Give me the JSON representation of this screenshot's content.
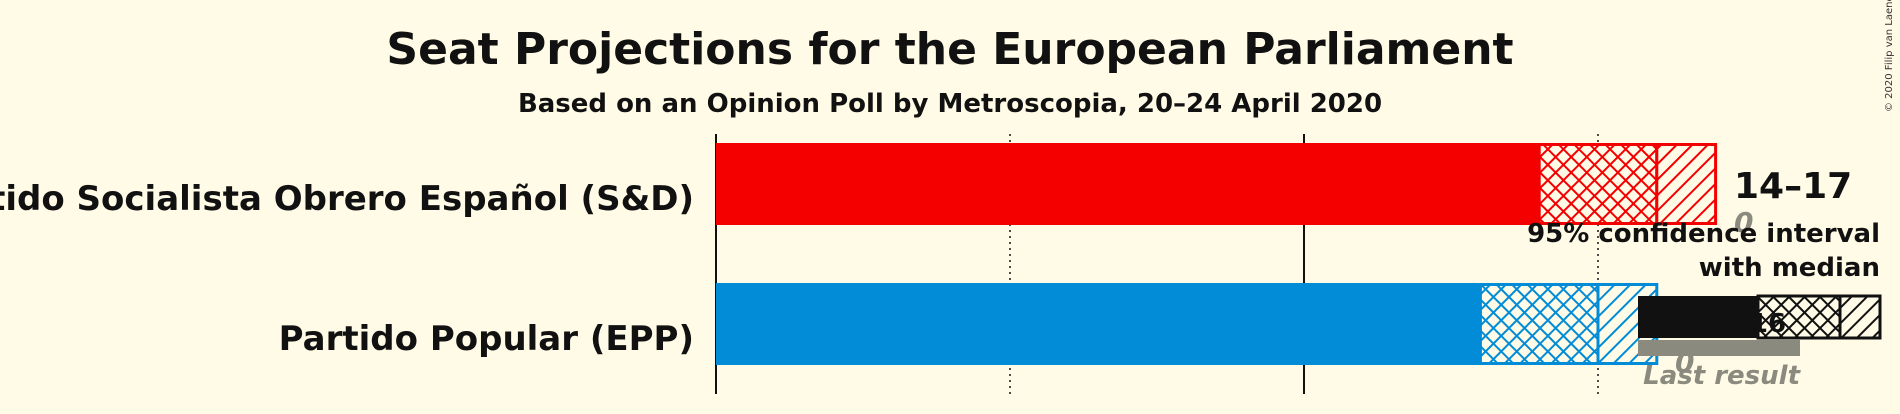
{
  "title": "Seat Projections for the European Parliament",
  "subtitle": "Based on an Opinion Poll by Metroscopia, 20–24 April 2020",
  "copyright": "© 2020 Filip van Laenen",
  "colors": {
    "background": "#fffbe6",
    "grey": "#8a8a7e",
    "legend": "#111111"
  },
  "chart_data": {
    "type": "bar",
    "orientation": "horizontal",
    "x_range": [
      0,
      17
    ],
    "gridlines": [
      5,
      10,
      15
    ],
    "categories": [
      "Partido Socialista Obrero Español (S&D)",
      "Partido Popular (EPP)"
    ],
    "series": [
      {
        "party": "Partido Socialista Obrero Español (S&D)",
        "color": "#f40000",
        "low": 14,
        "median": 16,
        "high": 17,
        "range_label": "14–17",
        "last_result": 0,
        "last_result_label": "0"
      },
      {
        "party": "Partido Popular (EPP)",
        "color": "#028cd7",
        "low": 13,
        "median": 15,
        "high": 16,
        "range_label": "",
        "last_result": 0,
        "last_result_label": "0"
      }
    ],
    "legend": {
      "ci_line1": "95% confidence interval",
      "ci_line2": "with median",
      "last_result": "Last result",
      "median_value": "16"
    }
  }
}
